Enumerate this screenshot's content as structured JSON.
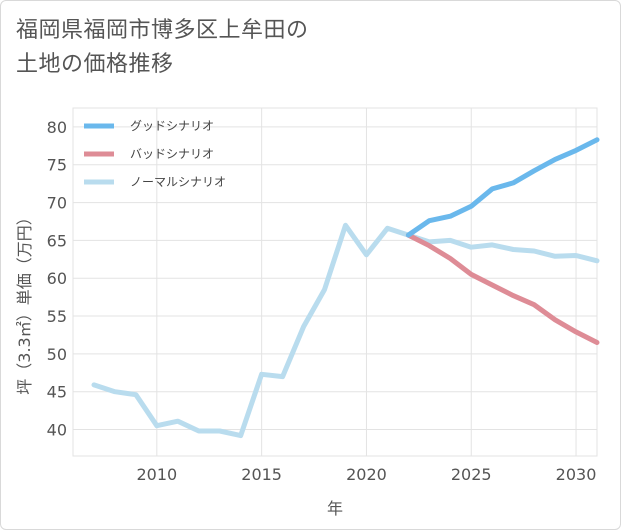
{
  "page": {
    "title_line1": "福岡県福岡市博多区上牟田の",
    "title_line2": "土地の価格推移"
  },
  "chart_data": {
    "type": "line",
    "title": "福岡県福岡市博多区上牟田の土地の価格推移",
    "xlabel": "年",
    "ylabel": "坪（3.3㎡）単価（万円）",
    "xlim": [
      2006,
      2031
    ],
    "ylim": [
      36.5,
      82.5
    ],
    "xticks": [
      2010,
      2015,
      2020,
      2025,
      2030
    ],
    "yticks": [
      40,
      45,
      50,
      55,
      60,
      65,
      70,
      75,
      80
    ],
    "grid": true,
    "legend_position": "top-left",
    "series": [
      {
        "name": "グッドシナリオ",
        "color": "#6ab8ec",
        "x": [
          2022,
          2023,
          2024,
          2025,
          2026,
          2027,
          2028,
          2029,
          2030,
          2031
        ],
        "values": [
          65.7,
          67.6,
          68.2,
          69.5,
          71.8,
          72.6,
          74.2,
          75.7,
          76.9,
          78.3
        ]
      },
      {
        "name": "バッドシナリオ",
        "color": "#de8c96",
        "x": [
          2022,
          2023,
          2024,
          2025,
          2026,
          2027,
          2028,
          2029,
          2030,
          2031
        ],
        "values": [
          65.7,
          64.3,
          62.6,
          60.5,
          59.1,
          57.7,
          56.5,
          54.5,
          52.9,
          51.5
        ]
      },
      {
        "name": "ノーマルシナリオ",
        "color": "#b9dcee",
        "x": [
          2007,
          2008,
          2009,
          2010,
          2011,
          2012,
          2013,
          2014,
          2015,
          2016,
          2017,
          2018,
          2019,
          2020,
          2021,
          2022,
          2023,
          2024,
          2025,
          2026,
          2027,
          2028,
          2029,
          2030,
          2031
        ],
        "values": [
          45.9,
          45.0,
          44.6,
          40.5,
          41.1,
          39.8,
          39.8,
          39.2,
          47.3,
          47.0,
          53.6,
          58.5,
          67.0,
          63.1,
          66.6,
          65.7,
          64.8,
          65.0,
          64.1,
          64.4,
          63.8,
          63.6,
          62.9,
          63.0,
          62.3
        ]
      }
    ]
  }
}
